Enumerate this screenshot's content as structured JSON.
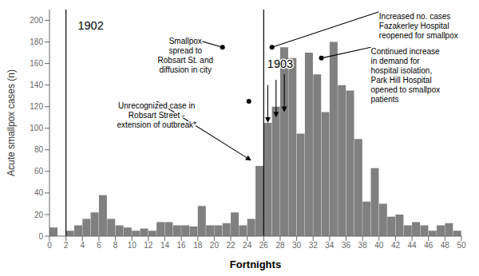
{
  "chart_data": {
    "type": "histogram",
    "xlabel": "Fortnights",
    "ylabel": "Acute smallpox cases (n)",
    "bins": [
      0,
      1,
      2,
      3,
      4,
      5,
      6,
      7,
      8,
      9,
      10,
      11,
      12,
      13,
      14,
      15,
      16,
      17,
      18,
      19,
      20,
      21,
      22,
      23,
      24,
      25,
      26,
      27,
      28,
      29,
      30,
      31,
      32,
      33,
      34,
      35,
      36,
      37,
      38,
      39,
      40,
      41,
      42,
      43,
      44,
      45,
      46,
      47,
      48,
      49,
      50
    ],
    "values": [
      8,
      0,
      5,
      10,
      16,
      22,
      38,
      16,
      10,
      8,
      5,
      7,
      5,
      13,
      13,
      10,
      10,
      9,
      28,
      10,
      10,
      12,
      22,
      10,
      16,
      65,
      105,
      120,
      175,
      165,
      95,
      170,
      150,
      115,
      180,
      140,
      135,
      90,
      32,
      63,
      30,
      18,
      20,
      10,
      13,
      10,
      5,
      10,
      12,
      5
    ],
    "color": "#808080",
    "xlim": [
      0,
      50
    ],
    "ylim": [
      0,
      210
    ],
    "xticks": [
      0,
      2,
      4,
      6,
      8,
      10,
      12,
      14,
      16,
      18,
      20,
      22,
      24,
      26,
      28,
      30,
      32,
      34,
      36,
      38,
      40,
      42,
      44,
      46,
      48,
      50
    ],
    "yticks": [
      0,
      20,
      40,
      60,
      80,
      100,
      120,
      140,
      160,
      180,
      200
    ],
    "grid": false,
    "vlines": [
      2,
      26
    ],
    "labels": [
      {
        "text": "1902",
        "x": 5,
        "y": 195
      },
      {
        "text": "1903",
        "x": 28,
        "y": 160
      }
    ],
    "annotations": [
      {
        "text": "Smallpox\nspread to\nRobsart St. and\ndiffusion in city",
        "x": 16.5,
        "y": 185,
        "align": "center",
        "point": [
          21,
          175
        ],
        "dot": [
          21,
          175
        ],
        "arrow": "line"
      },
      {
        "text": "Unrecognized case in\nRobsart Street -\nextension of outbreak*",
        "x": 13,
        "y": 125,
        "align": "center",
        "point": [
          24.5,
          70
        ],
        "dot": [
          24.2,
          125
        ],
        "arrow": "arrow"
      },
      {
        "text": "Increased no. cases\nFazakerley Hospital\nreopened for smallpox",
        "x": 40,
        "y": 208,
        "align": "left",
        "point": [
          27,
          175
        ],
        "dot": [
          27,
          175
        ],
        "arrow": "line"
      },
      {
        "text": "Continued increase\nin demand for\nhospital isolation,\nPark Hill Hospital\nopened to smallpox\npatients",
        "x": 39,
        "y": 175,
        "align": "left",
        "point": [
          33,
          165
        ],
        "dot": [
          33,
          165
        ],
        "arrow": "line"
      }
    ],
    "arrows": [
      {
        "from": [
          26.5,
          140
        ],
        "to": [
          26.5,
          105
        ]
      },
      {
        "from": [
          27.5,
          145
        ],
        "to": [
          27.5,
          110
        ]
      },
      {
        "from": [
          28.5,
          150
        ],
        "to": [
          28.5,
          115
        ]
      }
    ]
  }
}
